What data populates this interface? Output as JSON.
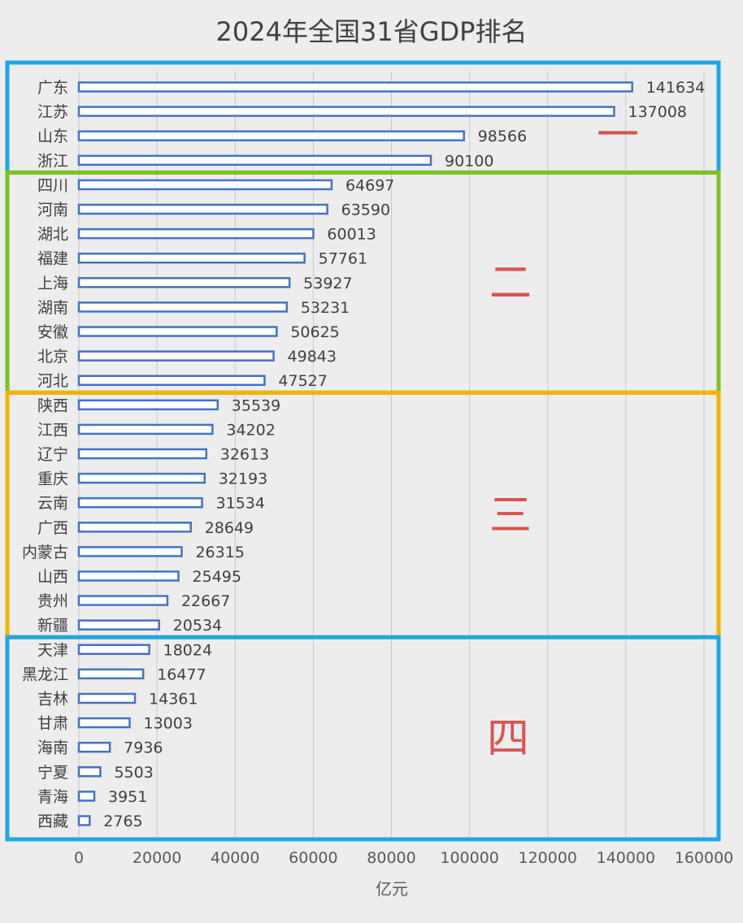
{
  "chart_data": {
    "type": "bar",
    "orientation": "horizontal",
    "title": "2024年全国31省GDP排名",
    "xlabel": "亿元",
    "ylabel": "",
    "xlim": [
      0,
      160000
    ],
    "xticks": [
      "0",
      "20000",
      "40000",
      "60000",
      "80000",
      "100000",
      "120000",
      "140000",
      "160000"
    ],
    "grid": "vertical",
    "categories": [
      "广东",
      "江苏",
      "山东",
      "浙江",
      "四川",
      "河南",
      "湖北",
      "福建",
      "上海",
      "湖南",
      "安徽",
      "北京",
      "河北",
      "陕西",
      "江西",
      "辽宁",
      "重庆",
      "云南",
      "广西",
      "内蒙古",
      "山西",
      "贵州",
      "新疆",
      "天津",
      "黑龙江",
      "吉林",
      "甘肃",
      "海南",
      "宁夏",
      "青海",
      "西藏"
    ],
    "values": [
      141634,
      137008,
      98566,
      90100,
      64697,
      63590,
      60013,
      57761,
      53927,
      53231,
      50625,
      49843,
      47527,
      35539,
      34202,
      32613,
      32193,
      31534,
      28649,
      26315,
      25495,
      22667,
      20534,
      18024,
      16477,
      14361,
      13003,
      7936,
      5503,
      3951,
      2765
    ],
    "bar_color": "#4472c4",
    "groups": [
      {
        "mark": "一",
        "first": 0,
        "last": 3,
        "box_color": "#1ea7e8",
        "mark_color": "#d9534f"
      },
      {
        "mark": "二",
        "first": 4,
        "last": 12,
        "box_color": "#7cc220",
        "mark_color": "#d9534f"
      },
      {
        "mark": "三",
        "first": 13,
        "last": 22,
        "box_color": "#f0b400",
        "mark_color": "#d9534f"
      },
      {
        "mark": "四",
        "first": 23,
        "last": 30,
        "box_color": "#1ea7e8",
        "mark_color": "#d9534f"
      }
    ]
  }
}
